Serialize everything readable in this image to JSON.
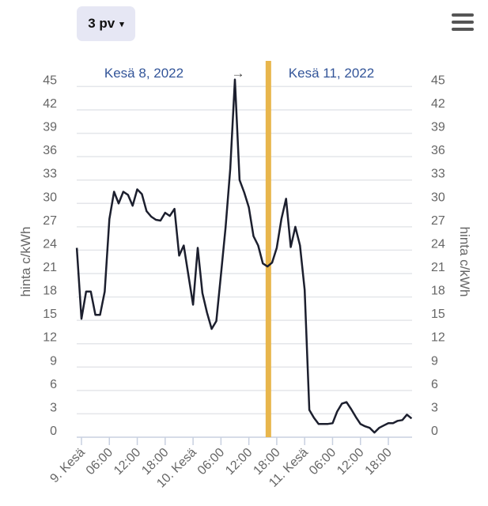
{
  "toolbar": {
    "range_label": "3 pv",
    "range_caret": "▾",
    "menu_icon": "hamburger-icon"
  },
  "chart_data": {
    "type": "line",
    "title": "",
    "ylabel": "hinta c/kWh",
    "ylabel_right": "hinta c/kWh",
    "xlabel": "",
    "ylim": [
      0,
      45
    ],
    "yticks": [
      "0",
      "3",
      "6",
      "9",
      "12",
      "15",
      "18",
      "21",
      "24",
      "27",
      "30",
      "33",
      "36",
      "39",
      "42",
      "45"
    ],
    "xticks": [
      {
        "label": "9. Kesä",
        "hour": 0
      },
      {
        "label": "06:00",
        "hour": 6
      },
      {
        "label": "12:00",
        "hour": 12
      },
      {
        "label": "18:00",
        "hour": 18
      },
      {
        "label": "10. Kesä",
        "hour": 24
      },
      {
        "label": "06:00",
        "hour": 30
      },
      {
        "label": "12:00",
        "hour": 36
      },
      {
        "label": "18:00",
        "hour": 42
      },
      {
        "label": "11. Kesä",
        "hour": 48
      },
      {
        "label": "06:00",
        "hour": 54
      },
      {
        "label": "12:00",
        "hour": 60
      },
      {
        "label": "18:00",
        "hour": 66
      }
    ],
    "xlim_hours": [
      -1,
      71
    ],
    "grid": true,
    "marker": {
      "hour": 40.2,
      "color": "#e8b64c"
    },
    "band_labels": {
      "left": "Kesä 8, 2022",
      "arrow": "→",
      "right": "Kesä 11, 2022"
    },
    "series": [
      {
        "name": "hinta c/kWh",
        "color": "#1c1f2e",
        "start_hour": -1,
        "values": [
          24.3,
          15.2,
          18.7,
          18.7,
          15.7,
          15.7,
          18.7,
          28.0,
          31.5,
          30.0,
          31.5,
          31.1,
          29.7,
          31.8,
          31.2,
          29.0,
          28.3,
          27.9,
          27.8,
          28.8,
          28.4,
          29.3,
          23.3,
          24.6,
          20.8,
          17.0,
          24.3,
          18.5,
          16.0,
          13.9,
          14.9,
          20.9,
          26.9,
          34.4,
          45.9,
          33.0,
          31.4,
          29.5,
          25.8,
          24.6,
          22.3,
          21.9,
          22.4,
          24.3,
          28.0,
          30.6,
          24.4,
          27.0,
          24.6,
          18.9,
          3.5,
          2.5,
          1.7,
          1.7,
          1.7,
          1.8,
          3.3,
          4.3,
          4.5,
          3.6,
          2.6,
          1.7,
          1.4,
          1.2,
          0.6,
          1.2,
          1.5,
          1.8,
          1.8,
          2.1,
          2.2,
          2.9,
          2.4
        ]
      }
    ]
  }
}
